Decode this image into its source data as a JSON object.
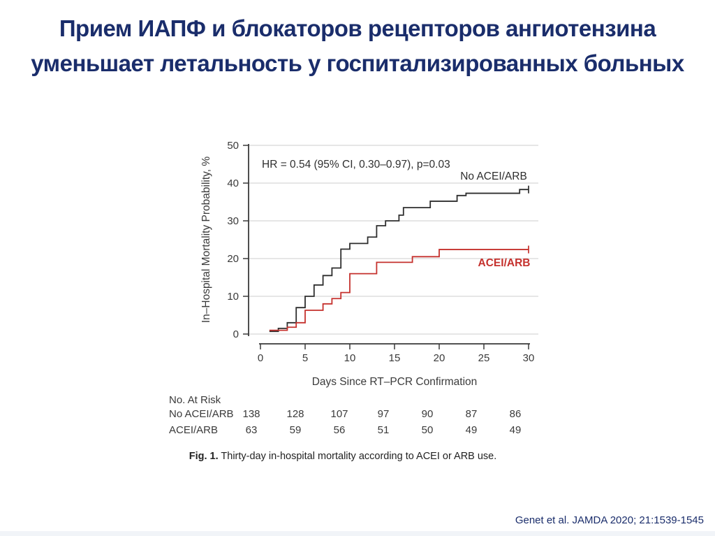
{
  "slide": {
    "title_line1": "Прием ИАПФ и блокаторов рецепторов ангиотензина",
    "title_line2": "уменьшает летальность у госпитализированных больных",
    "title_color": "#1a2d6b",
    "citation": "Genet et al. JAMDA 2020; 21:1539-1545",
    "footer_strip_color": "#f1f4f8"
  },
  "chart_data": {
    "type": "line",
    "subtype": "kaplan-meier-step",
    "title": "",
    "annotation": "HR = 0.54 (95% CI, 0.30–0.97), p=0.03",
    "xlabel": "Days Since RT–PCR Confirmation",
    "ylabel": "In–Hospital Mortality Probability, %",
    "xlim": [
      0,
      30
    ],
    "ylim": [
      0,
      50
    ],
    "xticks": [
      0,
      5,
      10,
      15,
      20,
      25,
      30
    ],
    "yticks": [
      0,
      10,
      20,
      30,
      40,
      50
    ],
    "grid": true,
    "legend_position": "inline-labels",
    "colors": {
      "axis": "#3a3a3a",
      "text": "#3a3a3a",
      "grid": "#cccccc"
    },
    "series": [
      {
        "name": "No ACEI/ARB",
        "color": "#2e2e2e",
        "label_bold": false,
        "steps": [
          [
            1,
            0.7
          ],
          [
            2,
            1.5
          ],
          [
            3,
            3
          ],
          [
            4,
            7
          ],
          [
            5,
            10
          ],
          [
            6,
            13
          ],
          [
            7,
            15.5
          ],
          [
            8,
            17.5
          ],
          [
            9,
            22.5
          ],
          [
            10,
            24
          ],
          [
            12,
            25.7
          ],
          [
            13,
            28.7
          ],
          [
            14,
            30
          ],
          [
            15.5,
            31.5
          ],
          [
            16,
            33.5
          ],
          [
            19,
            35.2
          ],
          [
            22,
            36.7
          ],
          [
            23,
            37.3
          ],
          [
            29,
            38.3
          ]
        ],
        "end_day": 30,
        "censored_end": true
      },
      {
        "name": "ACEI/ARB",
        "color": "#c5312d",
        "label_bold": true,
        "steps": [
          [
            1,
            1
          ],
          [
            3,
            1.8
          ],
          [
            4,
            3
          ],
          [
            5,
            6.3
          ],
          [
            7,
            8
          ],
          [
            8,
            9.4
          ],
          [
            9,
            11
          ],
          [
            10,
            16
          ],
          [
            13,
            19
          ],
          [
            17,
            20.5
          ],
          [
            20,
            22.4
          ]
        ],
        "end_day": 30,
        "censored_end": true
      }
    ],
    "at_risk": {
      "header": "No. At Risk",
      "days": [
        0,
        5,
        10,
        15,
        20,
        25,
        30
      ],
      "rows": [
        {
          "label": "No ACEI/ARB",
          "values": [
            138,
            128,
            107,
            97,
            90,
            87,
            86
          ]
        },
        {
          "label": "ACEI/ARB",
          "values": [
            63,
            59,
            56,
            51,
            50,
            49,
            49
          ]
        }
      ]
    },
    "caption": {
      "bold": "Fig. 1.",
      "text": " Thirty-day in-hospital mortality according to ACEI or ARB use."
    }
  }
}
